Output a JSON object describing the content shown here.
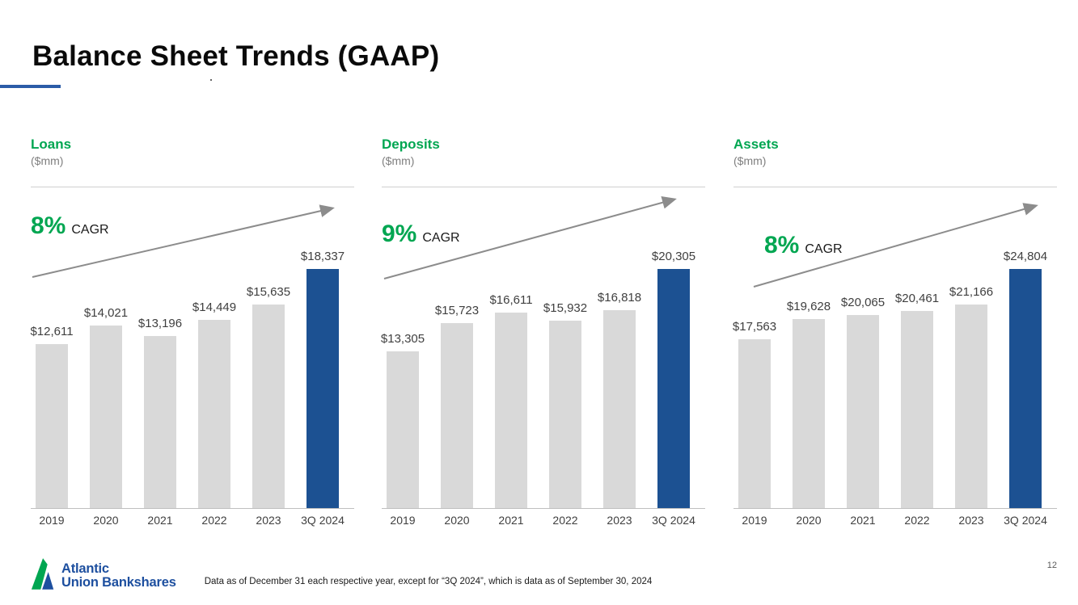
{
  "slide": {
    "title": "Balance Sheet Trends (GAAP)",
    "page_number": "12",
    "footnote": "Data as of December 31 each respective year, except for “3Q 2024”, which is data as of September 30, 2024",
    "logo": {
      "name": "Atlantic Union Bankshares",
      "line1": "Atlantic",
      "line2": "Union Bankshares"
    }
  },
  "colors": {
    "accent_green": "#00a651",
    "bar_gray": "#d9d9d9",
    "bar_blue": "#1c5192",
    "arrow_gray": "#8c8c8c",
    "logo_navy": "#1d4f9f",
    "title_underline_blue": "#2b5ca7"
  },
  "chart_data": [
    {
      "type": "bar",
      "title": "Loans",
      "unit_label": "($mm)",
      "cagr_pct": "8%",
      "cagr_word": "CAGR",
      "categories": [
        "2019",
        "2020",
        "2021",
        "2022",
        "2023",
        "3Q 2024"
      ],
      "values": [
        12611,
        14021,
        13196,
        14449,
        15635,
        18337
      ],
      "value_labels": [
        "$12,611",
        "$14,021",
        "$13,196",
        "$14,449",
        "$15,635",
        "$18,337"
      ],
      "highlight_index": 5,
      "ylim": [
        0,
        18337
      ],
      "grid": false,
      "legend": "none"
    },
    {
      "type": "bar",
      "title": "Deposits",
      "unit_label": "($mm)",
      "cagr_pct": "9%",
      "cagr_word": "CAGR",
      "categories": [
        "2019",
        "2020",
        "2021",
        "2022",
        "2023",
        "3Q 2024"
      ],
      "values": [
        13305,
        15723,
        16611,
        15932,
        16818,
        20305
      ],
      "value_labels": [
        "$13,305",
        "$15,723",
        "$16,611",
        "$15,932",
        "$16,818",
        "$20,305"
      ],
      "highlight_index": 5,
      "ylim": [
        0,
        20305
      ],
      "grid": false,
      "legend": "none"
    },
    {
      "type": "bar",
      "title": "Assets",
      "unit_label": "($mm)",
      "cagr_pct": "8%",
      "cagr_word": "CAGR",
      "categories": [
        "2019",
        "2020",
        "2021",
        "2022",
        "2023",
        "3Q 2024"
      ],
      "values": [
        17563,
        19628,
        20065,
        20461,
        21166,
        24804
      ],
      "value_labels": [
        "$17,563",
        "$19,628",
        "$20,065",
        "$20,461",
        "$21,166",
        "$24,804"
      ],
      "highlight_index": 5,
      "ylim": [
        0,
        24804
      ],
      "grid": false,
      "legend": "none"
    }
  ]
}
